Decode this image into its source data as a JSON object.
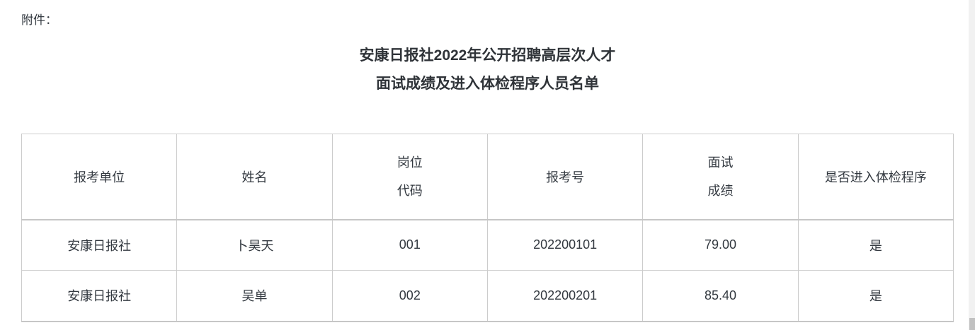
{
  "page": {
    "attachment_label": "附件：",
    "title_line1": "安康日报社2022年公开招聘高层次人才",
    "title_line2": "面试成绩及进入体检程序人员名单"
  },
  "table": {
    "header": {
      "unit": "报考单位",
      "name": "姓名",
      "post_code_line1": "岗位",
      "post_code_line2": "代码",
      "application_no": "报考号",
      "interview_score_line1": "面试",
      "interview_score_line2": "成绩",
      "physical_exam": "是否进入体检程序"
    },
    "rows": [
      {
        "unit": "安康日报社",
        "name": "卜昊天",
        "post_code": "001",
        "application_no": "202200101",
        "interview_score": "79.00",
        "physical_exam": "是"
      },
      {
        "unit": "安康日报社",
        "name": "吴单",
        "post_code": "002",
        "application_no": "202200201",
        "interview_score": "85.40",
        "physical_exam": "是"
      }
    ]
  },
  "colors": {
    "text": "#333940",
    "border": "#cccccc",
    "scrollbar_track": "#f1f1f1",
    "scrollbar_thumb": "#c1c1c1"
  }
}
